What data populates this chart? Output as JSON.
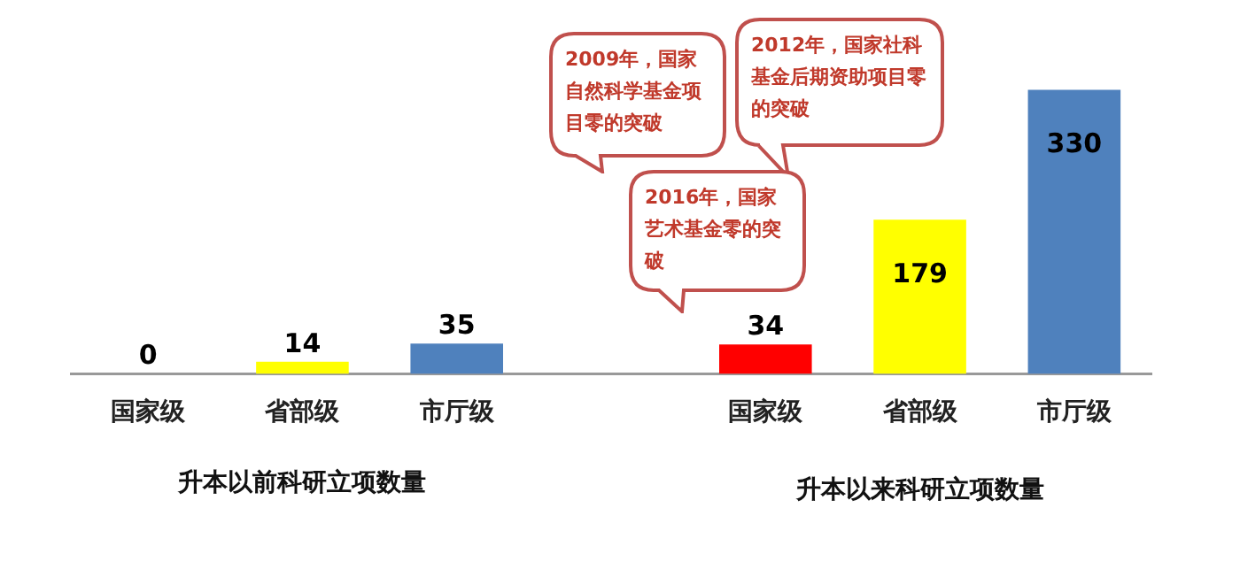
{
  "chart_data": {
    "type": "bar",
    "categories": [
      "国家级",
      "省部级",
      "市厅级",
      null,
      "国家级",
      "省部级",
      "市厅级"
    ],
    "values": [
      0,
      14,
      35,
      null,
      34,
      179,
      330
    ],
    "colors": [
      "#4f81bd",
      "#ffff00",
      "#4f81bd",
      null,
      "#ff0000",
      "#ffff00",
      "#4f81bd"
    ],
    "data_labels": true,
    "grid": false,
    "legend": false,
    "tick_labels": "x",
    "annotations": [
      "升本以前科研立项数量",
      "升本以来科研立项数量",
      "2009年，国家自然科学基金项目零的突破",
      "2012年，国家社科基金后期资助项目零的突破",
      "2016年，国家艺术基金零的突破"
    ]
  }
}
